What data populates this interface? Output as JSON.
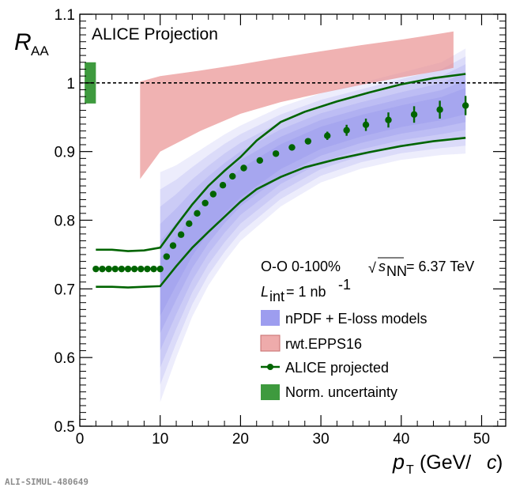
{
  "chart_data": {
    "type": "scatter",
    "title": "ALICE Projection",
    "ylabel": "R_AA",
    "xlabel": "p_T (GeV/c)",
    "xlim": [
      0,
      53
    ],
    "ylim": [
      0.5,
      1.1
    ],
    "x_ticks": [
      "0",
      "10",
      "20",
      "30",
      "40",
      "50"
    ],
    "x_tick_values": [
      0,
      10,
      20,
      30,
      40,
      50
    ],
    "y_ticks": [
      "0.5",
      "0.6",
      "0.7",
      "0.8",
      "0.9",
      "1",
      "1.1"
    ],
    "y_tick_values": [
      0.5,
      0.6,
      0.7,
      0.8,
      0.9,
      1.0,
      1.1
    ],
    "reference_line": 1.0,
    "series": [
      {
        "name": "ALICE projected",
        "color": "#006400",
        "x": [
          2.0,
          2.8,
          3.6,
          4.4,
          5.2,
          6.0,
          6.8,
          7.6,
          8.4,
          9.2,
          10.0,
          10.8,
          11.6,
          12.6,
          13.6,
          14.6,
          15.6,
          16.6,
          17.8,
          19.0,
          20.4,
          22.4,
          24.4,
          26.4,
          28.4,
          30.8,
          33.2,
          35.6,
          38.4,
          41.6,
          44.8,
          48.0
        ],
        "y": [
          0.729,
          0.729,
          0.729,
          0.729,
          0.729,
          0.729,
          0.729,
          0.729,
          0.729,
          0.729,
          0.729,
          0.747,
          0.763,
          0.779,
          0.795,
          0.81,
          0.825,
          0.838,
          0.851,
          0.864,
          0.876,
          0.887,
          0.897,
          0.906,
          0.915,
          0.923,
          0.931,
          0.939,
          0.946,
          0.954,
          0.961,
          0.967
        ],
        "yerr": [
          0,
          0,
          0,
          0,
          0,
          0,
          0,
          0,
          0,
          0,
          0,
          0,
          0,
          0,
          0,
          0,
          0,
          0,
          0,
          0,
          0,
          0,
          0,
          0,
          0.004,
          0.006,
          0.008,
          0.009,
          0.011,
          0.012,
          0.013,
          0.014
        ]
      },
      {
        "name": "ALICE projected upper",
        "color": "#006400",
        "x": [
          2,
          4,
          6,
          8,
          10,
          12,
          14,
          16,
          18,
          20,
          22,
          25,
          28,
          32,
          36,
          40,
          44,
          48
        ],
        "y": [
          0.757,
          0.757,
          0.755,
          0.756,
          0.76,
          0.792,
          0.823,
          0.85,
          0.872,
          0.892,
          0.916,
          0.943,
          0.958,
          0.973,
          0.986,
          0.998,
          1.007,
          1.013
        ]
      },
      {
        "name": "ALICE projected lower",
        "color": "#006400",
        "x": [
          2,
          4,
          6,
          8,
          10,
          12,
          14,
          16,
          18,
          20,
          22,
          25,
          28,
          32,
          36,
          40,
          44,
          48
        ],
        "y": [
          0.703,
          0.703,
          0.702,
          0.703,
          0.704,
          0.733,
          0.76,
          0.783,
          0.805,
          0.827,
          0.845,
          0.863,
          0.877,
          0.889,
          0.899,
          0.908,
          0.915,
          0.92
        ]
      }
    ],
    "bands": [
      {
        "name": "nPDF + E-loss models",
        "color": "#8c8cec",
        "x": [
          10,
          12,
          14,
          16,
          18,
          20,
          25,
          30,
          35,
          40,
          45,
          48
        ],
        "lower": [
          0.535,
          0.6,
          0.66,
          0.705,
          0.74,
          0.77,
          0.82,
          0.855,
          0.875,
          0.888,
          0.895,
          0.897
        ],
        "upper": [
          0.87,
          0.88,
          0.895,
          0.91,
          0.925,
          0.938,
          0.965,
          0.985,
          1.0,
          1.015,
          1.03,
          1.05
        ]
      },
      {
        "name": "rwt.EPPS16",
        "color": "#e88888",
        "x": [
          7.5,
          10,
          15,
          20,
          25,
          30,
          35,
          40,
          45,
          46.5
        ],
        "lower": [
          0.86,
          0.9,
          0.93,
          0.955,
          0.972,
          0.985,
          0.997,
          1.008,
          1.018,
          1.022
        ],
        "upper": [
          1.002,
          1.01,
          1.018,
          1.027,
          1.037,
          1.046,
          1.055,
          1.063,
          1.072,
          1.075
        ]
      },
      {
        "name": "Norm. uncertainty",
        "color": "#3e9a3e",
        "x": [
          0.6,
          2.0
        ],
        "lower": [
          0.97,
          0.97
        ],
        "upper": [
          1.03,
          1.03
        ]
      }
    ],
    "annotations": {
      "system": "O-O 0-100%",
      "energy": "= 6.37 TeV",
      "sqrt_symbol": "√",
      "energy_var": "s",
      "energy_sub": "NN",
      "lumi_var": "L",
      "lumi_sub": "int",
      "lumi_value": "= 1 nb",
      "lumi_exp": "-1"
    },
    "legend": [
      {
        "label": "nPDF + E-loss models",
        "color": "#8c8cec",
        "kind": "box"
      },
      {
        "label": "rwt.EPPS16",
        "color": "#e88888",
        "kind": "box"
      },
      {
        "label": "ALICE projected",
        "color": "#006400",
        "kind": "marker"
      },
      {
        "label": "Norm. uncertainty",
        "color": "#3e9a3e",
        "kind": "filled"
      }
    ],
    "legend_position": "bottom-right"
  },
  "axis_titles": {
    "y_var": "R",
    "y_sub": "AA",
    "x_var": "p",
    "x_sub": "T",
    "x_unit_open": " (GeV/",
    "x_unit_var": "c",
    "x_unit_close": ")"
  },
  "footer": {
    "figure_id": "ALI-SIMUL-480649"
  }
}
